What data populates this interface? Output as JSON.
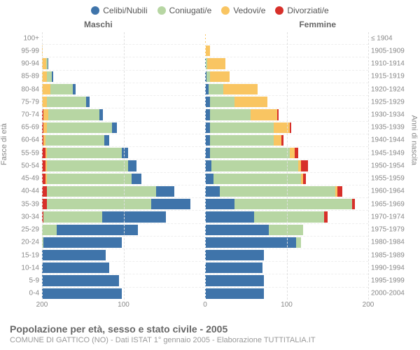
{
  "legend": [
    {
      "label": "Celibi/Nubili",
      "color": "#3f74aa"
    },
    {
      "label": "Coniugati/e",
      "color": "#b7d6a3"
    },
    {
      "label": "Vedovi/e",
      "color": "#f9c562"
    },
    {
      "label": "Divorziati/e",
      "color": "#d7302a"
    }
  ],
  "headers": {
    "male": "Maschi",
    "female": "Femmine"
  },
  "axis_left_label": "Fasce di età",
  "axis_right_label": "Anni di nascita",
  "x_ticks": [
    {
      "label": "200",
      "pos": 0
    },
    {
      "label": "100",
      "pos": 25
    },
    {
      "label": "0",
      "pos": 50
    },
    {
      "label": "100",
      "pos": 75
    },
    {
      "label": "200",
      "pos": 100
    }
  ],
  "grid_positions": [
    0,
    25,
    50,
    75,
    100
  ],
  "xmax": 200,
  "footer": {
    "title": "Popolazione per età, sesso e stato civile - 2005",
    "subtitle": "COMUNE DI GATTICO (NO) - Dati ISTAT 1° gennaio 2005 - Elaborazione TUTTITALIA.IT"
  },
  "rows": [
    {
      "age": "100+",
      "year": "≤ 1904",
      "m": [
        0,
        0,
        0,
        0
      ],
      "f": [
        0,
        0,
        1,
        0
      ]
    },
    {
      "age": "95-99",
      "year": "1905-1909",
      "m": [
        0,
        0,
        1,
        0
      ],
      "f": [
        0,
        0,
        6,
        0
      ]
    },
    {
      "age": "90-94",
      "year": "1910-1914",
      "m": [
        1,
        2,
        5,
        0
      ],
      "f": [
        1,
        2,
        22,
        0
      ]
    },
    {
      "age": "85-89",
      "year": "1915-1919",
      "m": [
        2,
        6,
        6,
        0
      ],
      "f": [
        2,
        4,
        24,
        0
      ]
    },
    {
      "age": "80-84",
      "year": "1920-1924",
      "m": [
        3,
        28,
        10,
        0
      ],
      "f": [
        4,
        18,
        42,
        0
      ]
    },
    {
      "age": "75-79",
      "year": "1925-1929",
      "m": [
        4,
        48,
        6,
        0
      ],
      "f": [
        6,
        30,
        40,
        0
      ]
    },
    {
      "age": "70-74",
      "year": "1930-1934",
      "m": [
        5,
        62,
        6,
        2
      ],
      "f": [
        6,
        50,
        32,
        2
      ]
    },
    {
      "age": "65-69",
      "year": "1935-1939",
      "m": [
        6,
        80,
        4,
        2
      ],
      "f": [
        6,
        78,
        20,
        2
      ]
    },
    {
      "age": "60-64",
      "year": "1940-1944",
      "m": [
        6,
        72,
        2,
        2
      ],
      "f": [
        6,
        78,
        10,
        2
      ]
    },
    {
      "age": "55-59",
      "year": "1945-1949",
      "m": [
        8,
        92,
        2,
        4
      ],
      "f": [
        6,
        98,
        6,
        4
      ]
    },
    {
      "age": "50-54",
      "year": "1950-1954",
      "m": [
        10,
        100,
        2,
        4
      ],
      "f": [
        8,
        106,
        4,
        8
      ]
    },
    {
      "age": "45-49",
      "year": "1955-1959",
      "m": [
        12,
        104,
        2,
        4
      ],
      "f": [
        10,
        108,
        2,
        4
      ]
    },
    {
      "age": "40-44",
      "year": "1960-1964",
      "m": [
        22,
        134,
        0,
        6
      ],
      "f": [
        18,
        142,
        2,
        6
      ]
    },
    {
      "age": "35-39",
      "year": "1965-1969",
      "m": [
        48,
        128,
        0,
        6
      ],
      "f": [
        36,
        144,
        0,
        4
      ]
    },
    {
      "age": "30-34",
      "year": "1970-1974",
      "m": [
        78,
        72,
        0,
        2
      ],
      "f": [
        60,
        86,
        0,
        4
      ]
    },
    {
      "age": "25-29",
      "year": "1975-1979",
      "m": [
        100,
        18,
        0,
        0
      ],
      "f": [
        78,
        42,
        0,
        0
      ]
    },
    {
      "age": "20-24",
      "year": "1980-1984",
      "m": [
        96,
        2,
        0,
        0
      ],
      "f": [
        112,
        6,
        0,
        0
      ]
    },
    {
      "age": "15-19",
      "year": "1985-1989",
      "m": [
        78,
        0,
        0,
        0
      ],
      "f": [
        72,
        0,
        0,
        0
      ]
    },
    {
      "age": "10-14",
      "year": "1990-1994",
      "m": [
        82,
        0,
        0,
        0
      ],
      "f": [
        70,
        0,
        0,
        0
      ]
    },
    {
      "age": "5-9",
      "year": "1995-1999",
      "m": [
        94,
        0,
        0,
        0
      ],
      "f": [
        72,
        0,
        0,
        0
      ]
    },
    {
      "age": "0-4",
      "year": "2000-2004",
      "m": [
        98,
        0,
        0,
        0
      ],
      "f": [
        72,
        0,
        0,
        0
      ]
    }
  ]
}
